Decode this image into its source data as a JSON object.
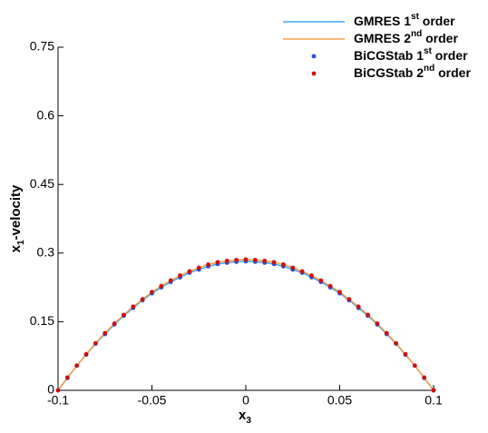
{
  "chart_data": {
    "type": "line",
    "xlabel": "x3",
    "ylabel": "x1-velocity",
    "x": [
      -0.1,
      -0.095,
      -0.09,
      -0.085,
      -0.08,
      -0.075,
      -0.07,
      -0.065,
      -0.06,
      -0.055,
      -0.05,
      -0.045,
      -0.04,
      -0.035,
      -0.03,
      -0.025,
      -0.02,
      -0.015,
      -0.01,
      -0.005,
      0,
      0.005,
      0.01,
      0.015,
      0.02,
      0.025,
      0.03,
      0.035,
      0.04,
      0.045,
      0.05,
      0.055,
      0.06,
      0.065,
      0.07,
      0.075,
      0.08,
      0.085,
      0.09,
      0.095,
      0.1
    ],
    "series": [
      {
        "name": "GMRES 1st order",
        "color": "#3fa9f5",
        "style": "line",
        "values": [
          0,
          0.027,
          0.054,
          0.078,
          0.102,
          0.123,
          0.144,
          0.163,
          0.18,
          0.197,
          0.212,
          0.225,
          0.237,
          0.247,
          0.257,
          0.264,
          0.271,
          0.276,
          0.279,
          0.281,
          0.282,
          0.281,
          0.279,
          0.276,
          0.271,
          0.264,
          0.257,
          0.247,
          0.237,
          0.225,
          0.212,
          0.197,
          0.18,
          0.163,
          0.144,
          0.123,
          0.102,
          0.078,
          0.054,
          0.027,
          0
        ]
      },
      {
        "name": "GMRES 2nd order",
        "color": "#f5a04a",
        "style": "line",
        "values": [
          0,
          0.028,
          0.054,
          0.079,
          0.103,
          0.125,
          0.146,
          0.165,
          0.183,
          0.199,
          0.215,
          0.228,
          0.24,
          0.251,
          0.26,
          0.268,
          0.275,
          0.28,
          0.283,
          0.285,
          0.286,
          0.285,
          0.283,
          0.28,
          0.275,
          0.268,
          0.26,
          0.251,
          0.24,
          0.228,
          0.215,
          0.199,
          0.183,
          0.165,
          0.146,
          0.125,
          0.103,
          0.079,
          0.054,
          0.028,
          0
        ]
      },
      {
        "name": "BiCGStab 1st order",
        "color": "#2b4fe0",
        "style": "markers",
        "values": [
          0,
          0.027,
          0.054,
          0.078,
          0.102,
          0.123,
          0.144,
          0.163,
          0.18,
          0.197,
          0.212,
          0.225,
          0.237,
          0.247,
          0.257,
          0.264,
          0.271,
          0.276,
          0.279,
          0.281,
          0.282,
          0.281,
          0.279,
          0.276,
          0.271,
          0.264,
          0.257,
          0.247,
          0.237,
          0.225,
          0.212,
          0.197,
          0.18,
          0.163,
          0.144,
          0.123,
          0.102,
          0.078,
          0.054,
          0.027,
          0
        ]
      },
      {
        "name": "BiCGStab 2nd order",
        "color": "#d01010",
        "style": "markers",
        "values": [
          0,
          0.028,
          0.054,
          0.079,
          0.103,
          0.125,
          0.146,
          0.165,
          0.183,
          0.199,
          0.215,
          0.228,
          0.24,
          0.251,
          0.26,
          0.268,
          0.275,
          0.28,
          0.283,
          0.285,
          0.286,
          0.285,
          0.283,
          0.28,
          0.275,
          0.268,
          0.26,
          0.251,
          0.24,
          0.228,
          0.215,
          0.199,
          0.183,
          0.165,
          0.146,
          0.125,
          0.103,
          0.079,
          0.054,
          0.028,
          0
        ]
      }
    ],
    "xlim": [
      -0.1,
      0.1
    ],
    "xticks": [
      -0.1,
      -0.05,
      0,
      0.05,
      0.1
    ],
    "ylim": [
      0,
      0.75
    ],
    "yticks": [
      0,
      0.15,
      0.3,
      0.45,
      0.6,
      0.75
    ],
    "grid": false,
    "legend": "top-right"
  }
}
